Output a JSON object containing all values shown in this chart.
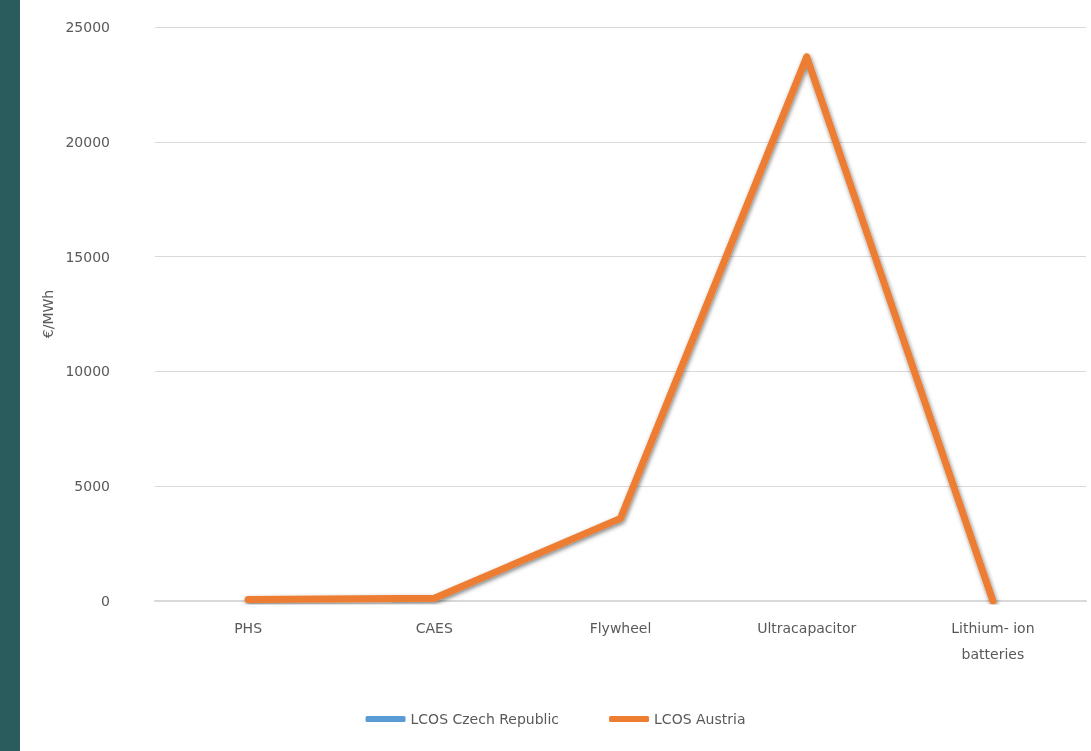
{
  "chart_data": {
    "type": "line",
    "ylabel": "€/MWh",
    "categories": [
      "PHS",
      "CAES",
      "Flywheel",
      "Ultracapacitor",
      "Lithium- ion\nbatteries"
    ],
    "series": [
      {
        "name": "LCOS Czech Republic",
        "color": "#5b9bd5",
        "values": [
          null,
          null,
          null,
          null,
          null
        ]
      },
      {
        "name": "LCOS Austria",
        "color": "#ed7d31",
        "values": [
          60,
          120,
          3600,
          23700,
          0
        ]
      }
    ],
    "ylim": [
      0,
      25000
    ],
    "yticks": [
      0,
      5000,
      10000,
      15000,
      20000,
      25000
    ],
    "grid": "y",
    "legend": "bottom",
    "marker": "none",
    "line_style": "solid"
  }
}
